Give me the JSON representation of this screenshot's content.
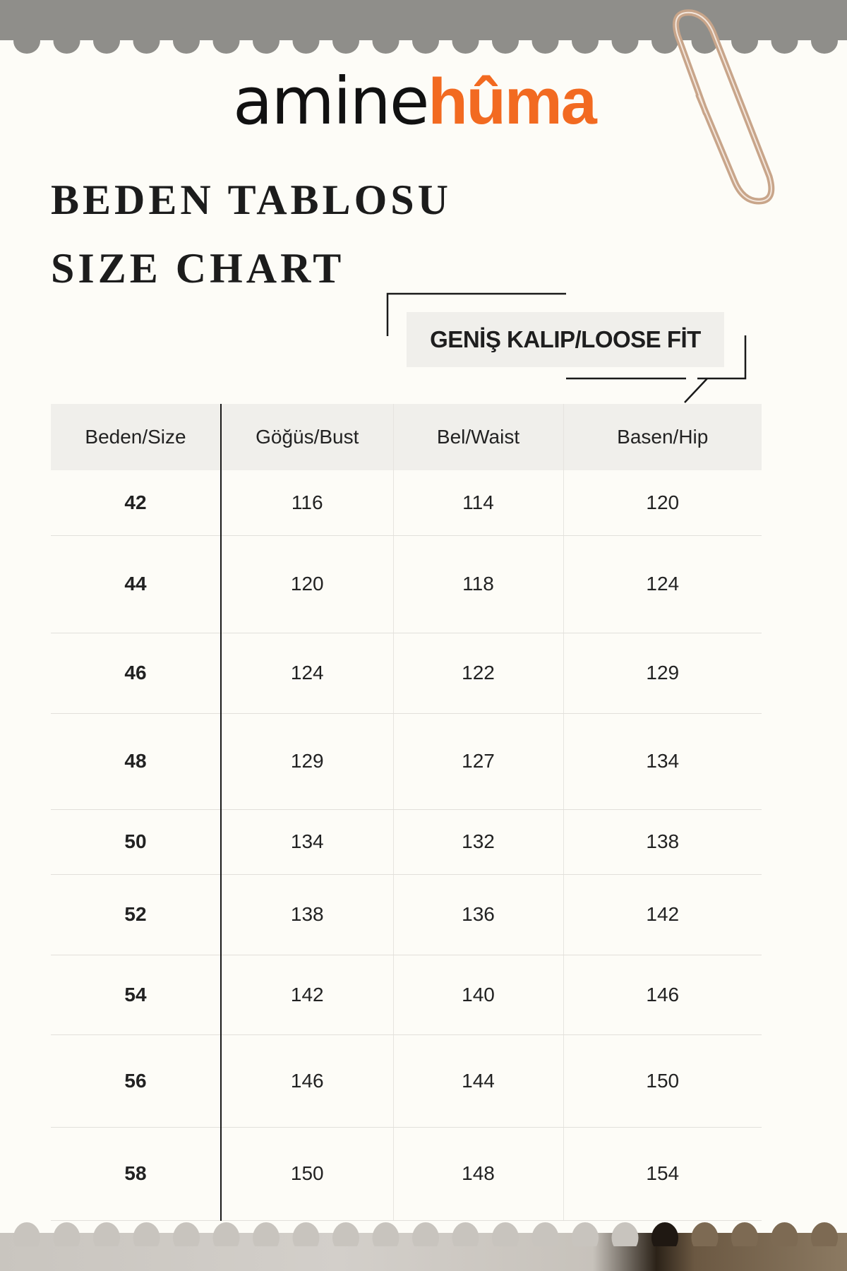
{
  "brand": {
    "part1": "amine",
    "part2": "hûma",
    "accent_color": "#f26a21"
  },
  "title_tr": "BEDEN TABLOSU",
  "title_en": "SIZE CHART",
  "fit_badge": "GENİŞ KALIP/LOOSE FİT",
  "table": {
    "headers": [
      "Beden/Size",
      "Göğüs/Bust",
      "Bel/Waist",
      "Basen/Hip"
    ],
    "rows": [
      [
        "42",
        "116",
        "114",
        "120"
      ],
      [
        "44",
        "120",
        "118",
        "124"
      ],
      [
        "46",
        "124",
        "122",
        "129"
      ],
      [
        "48",
        "129",
        "127",
        "134"
      ],
      [
        "50",
        "134",
        "132",
        "138"
      ],
      [
        "52",
        "138",
        "136",
        "142"
      ],
      [
        "54",
        "142",
        "140",
        "146"
      ],
      [
        "56",
        "146",
        "144",
        "150"
      ],
      [
        "58",
        "150",
        "148",
        "154"
      ]
    ]
  }
}
